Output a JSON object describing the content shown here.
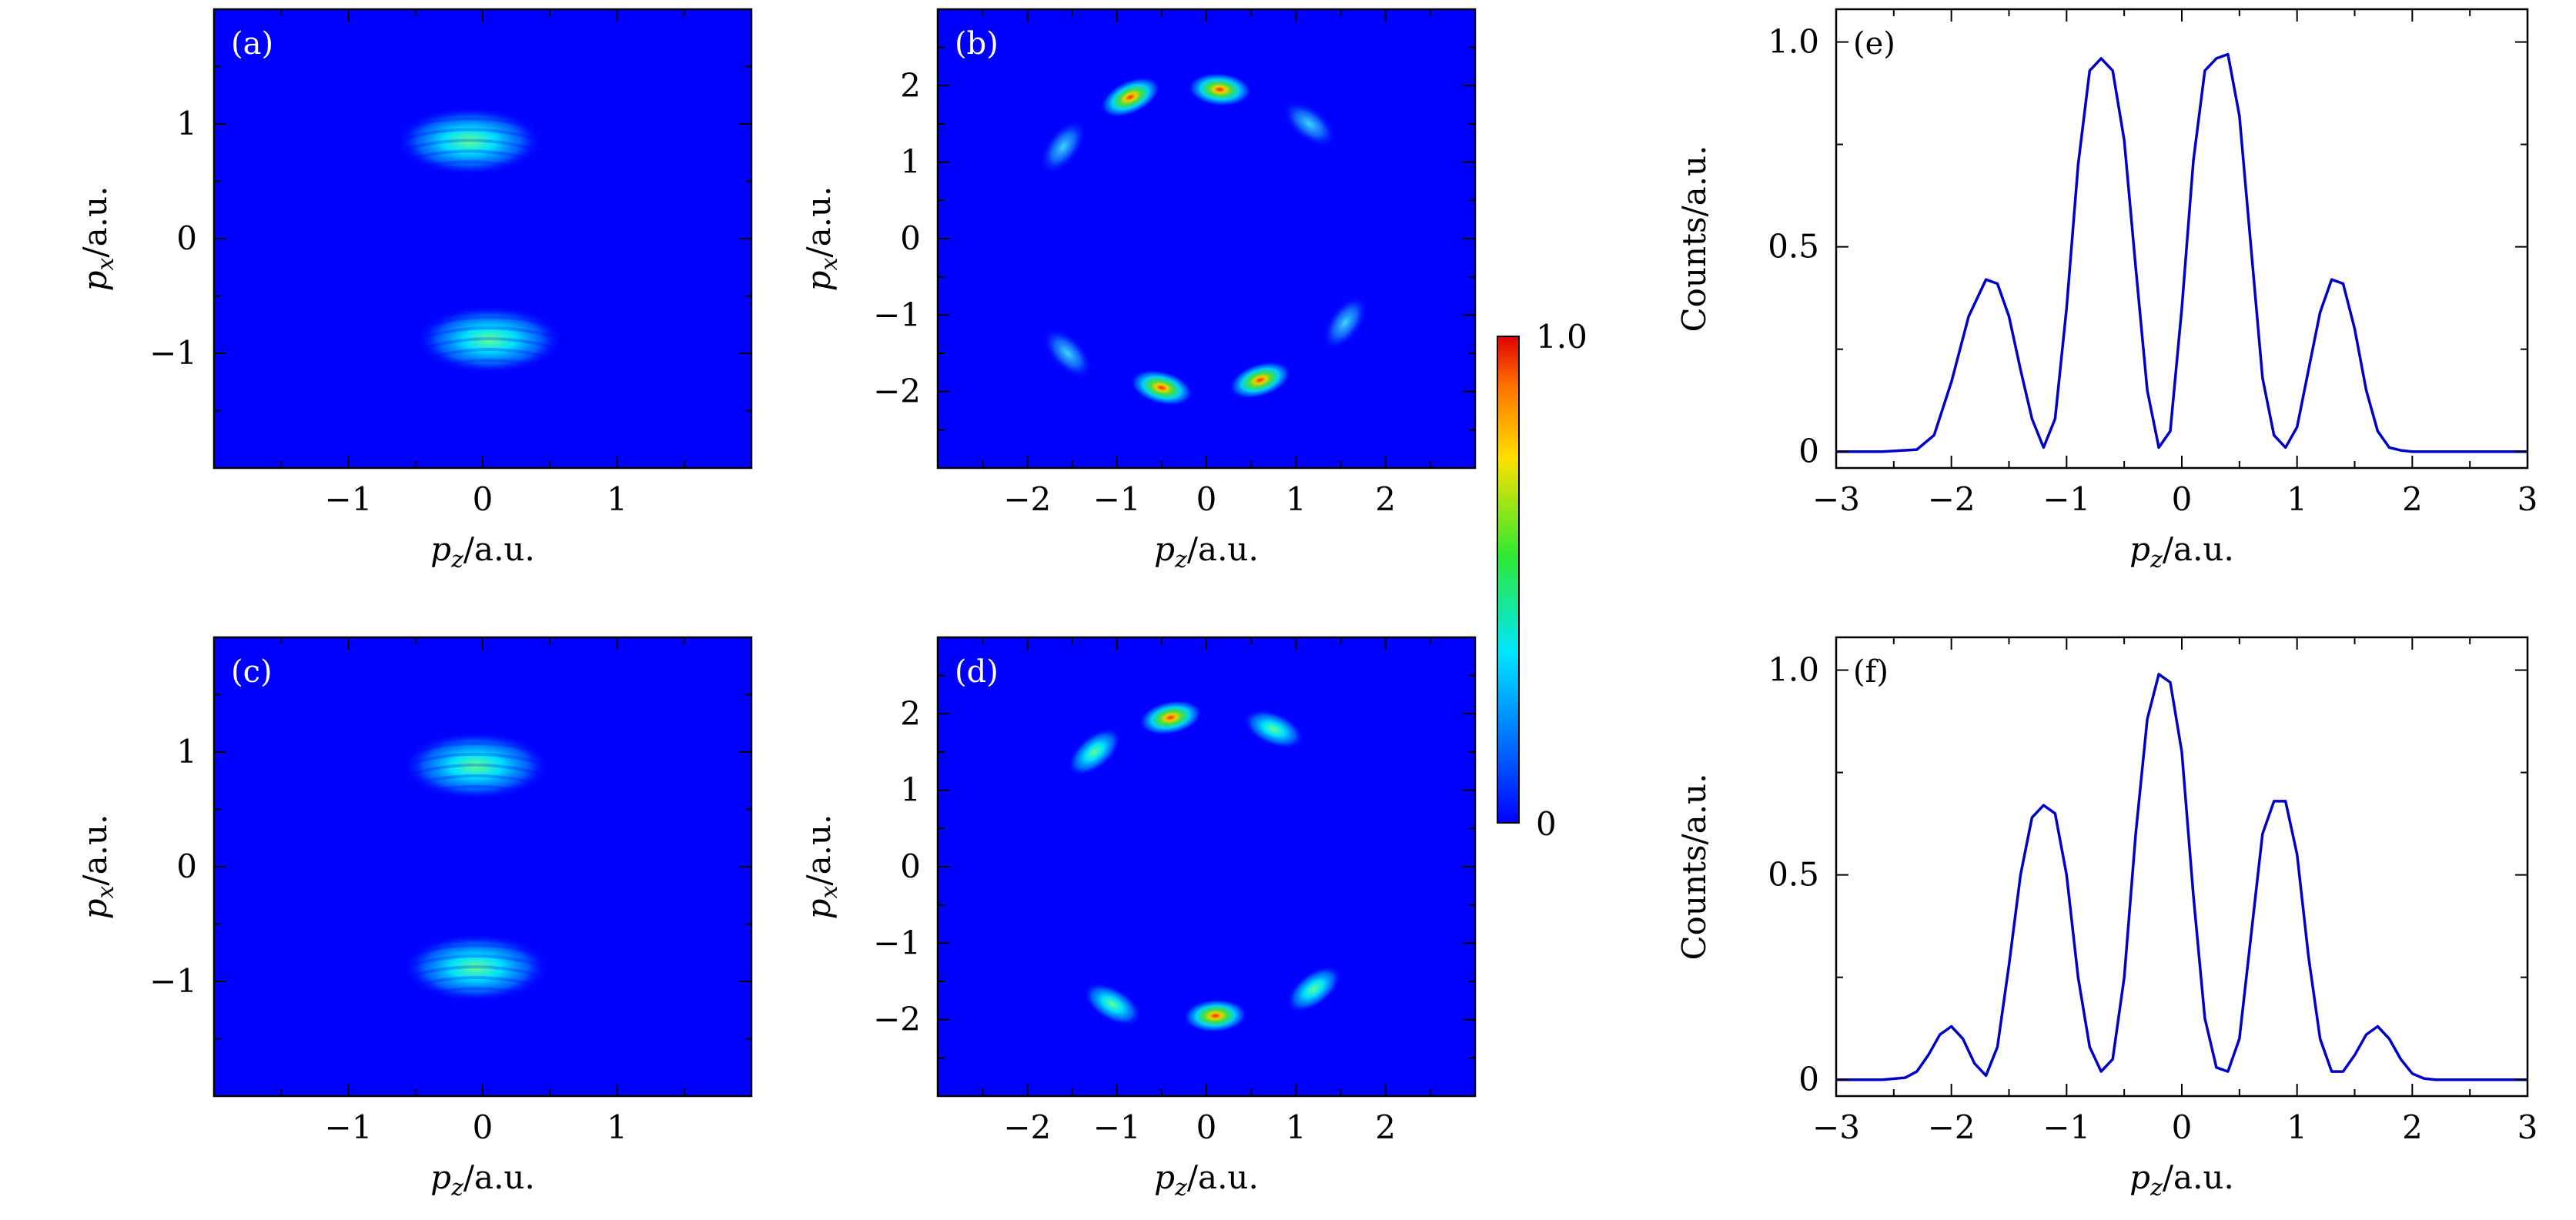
{
  "chart_data": [
    {
      "panel": "(a)",
      "type": "heatmap",
      "xlabel": "p_z/a.u.",
      "ylabel": "p_x/a.u.",
      "xlim": [
        -2,
        2
      ],
      "ylim": [
        -2,
        2
      ],
      "xticks": [
        -1,
        0,
        1
      ],
      "yticks": [
        -1,
        0,
        1
      ],
      "lobes": [
        {
          "x": -0.1,
          "y": 0.85,
          "peak": 0.7
        },
        {
          "x": 0.05,
          "y": -0.88,
          "peak": 0.7
        }
      ]
    },
    {
      "panel": "(b)",
      "type": "heatmap",
      "xlabel": "p_z/a.u.",
      "ylabel": "p_x/a.u.",
      "xlim": [
        -3,
        3
      ],
      "ylim": [
        -3,
        3
      ],
      "xticks": [
        -2,
        -1,
        0,
        1,
        2
      ],
      "yticks": [
        -2,
        -1,
        0,
        1,
        2
      ],
      "lobes": [
        {
          "x": -0.85,
          "y": 1.85,
          "peak": 1.0
        },
        {
          "x": 0.15,
          "y": 1.95,
          "peak": 1.0
        },
        {
          "x": -0.5,
          "y": -1.95,
          "peak": 1.0
        },
        {
          "x": 0.6,
          "y": -1.85,
          "peak": 1.0
        },
        {
          "x": 1.15,
          "y": 1.5,
          "peak": 0.45
        },
        {
          "x": -1.6,
          "y": 1.2,
          "peak": 0.4
        },
        {
          "x": -1.55,
          "y": -1.5,
          "peak": 0.45
        },
        {
          "x": 1.55,
          "y": -1.1,
          "peak": 0.4
        }
      ]
    },
    {
      "panel": "(c)",
      "type": "heatmap",
      "xlabel": "p_z/a.u.",
      "ylabel": "p_x/a.u.",
      "xlim": [
        -2,
        2
      ],
      "ylim": [
        -2,
        2
      ],
      "xticks": [
        -1,
        0,
        1
      ],
      "yticks": [
        -1,
        0,
        1
      ],
      "lobes": [
        {
          "x": -0.05,
          "y": 0.88,
          "peak": 0.7
        },
        {
          "x": -0.05,
          "y": -0.88,
          "peak": 0.7
        }
      ]
    },
    {
      "panel": "(d)",
      "type": "heatmap",
      "xlabel": "p_z/a.u.",
      "ylabel": "p_x/a.u.",
      "xlim": [
        -3,
        3
      ],
      "ylim": [
        -3,
        3
      ],
      "xticks": [
        -2,
        -1,
        0,
        1,
        2
      ],
      "yticks": [
        -2,
        -1,
        0,
        1,
        2
      ],
      "lobes": [
        {
          "x": -0.4,
          "y": 1.95,
          "peak": 1.0
        },
        {
          "x": 0.1,
          "y": -1.95,
          "peak": 1.0
        },
        {
          "x": 0.75,
          "y": 1.8,
          "peak": 0.85
        },
        {
          "x": -1.25,
          "y": 1.5,
          "peak": 0.85
        },
        {
          "x": -1.05,
          "y": -1.8,
          "peak": 0.85
        },
        {
          "x": 1.2,
          "y": -1.6,
          "peak": 0.85
        }
      ]
    },
    {
      "panel": "(e)",
      "type": "line",
      "xlabel": "p_z/a.u.",
      "ylabel": "Counts/a.u.",
      "xlim": [
        -3,
        3
      ],
      "ylim": [
        -0.04,
        1.08
      ],
      "xticks": [
        -3,
        -2,
        -1,
        0,
        1,
        2,
        3
      ],
      "yticks": [
        0,
        0.5,
        1.0
      ],
      "color": "#0000cc",
      "series": [
        {
          "x": [
            -3.0,
            -2.6,
            -2.3,
            -2.15,
            -2.0,
            -1.85,
            -1.7,
            -1.6,
            -1.5,
            -1.4,
            -1.3,
            -1.2,
            -1.1,
            -1.0,
            -0.9,
            -0.8,
            -0.7,
            -0.6,
            -0.5,
            -0.4,
            -0.3,
            -0.2,
            -0.1,
            0.0,
            0.1,
            0.2,
            0.3,
            0.4,
            0.5,
            0.6,
            0.7,
            0.8,
            0.9,
            1.0,
            1.1,
            1.2,
            1.3,
            1.4,
            1.5,
            1.6,
            1.7,
            1.8,
            1.9,
            2.0,
            2.2,
            2.5,
            3.0
          ],
          "y": [
            0.0,
            0.0,
            0.005,
            0.04,
            0.17,
            0.33,
            0.42,
            0.41,
            0.33,
            0.2,
            0.08,
            0.01,
            0.08,
            0.35,
            0.7,
            0.93,
            0.96,
            0.93,
            0.76,
            0.45,
            0.15,
            0.01,
            0.05,
            0.35,
            0.71,
            0.93,
            0.96,
            0.97,
            0.82,
            0.5,
            0.18,
            0.04,
            0.01,
            0.06,
            0.2,
            0.34,
            0.42,
            0.41,
            0.3,
            0.15,
            0.05,
            0.01,
            0.003,
            0.0,
            0.0,
            0.0,
            0.0
          ]
        }
      ]
    },
    {
      "panel": "(f)",
      "type": "line",
      "xlabel": "p_z/a.u.",
      "ylabel": "Counts/a.u.",
      "xlim": [
        -3,
        3
      ],
      "ylim": [
        -0.04,
        1.08
      ],
      "xticks": [
        -3,
        -2,
        -1,
        0,
        1,
        2,
        3
      ],
      "yticks": [
        0,
        0.5,
        1.0
      ],
      "color": "#0000cc",
      "series": [
        {
          "x": [
            -3.0,
            -2.6,
            -2.4,
            -2.3,
            -2.2,
            -2.1,
            -2.0,
            -1.9,
            -1.8,
            -1.7,
            -1.6,
            -1.5,
            -1.4,
            -1.3,
            -1.2,
            -1.1,
            -1.0,
            -0.9,
            -0.8,
            -0.7,
            -0.6,
            -0.5,
            -0.4,
            -0.3,
            -0.2,
            -0.1,
            0.0,
            0.1,
            0.2,
            0.3,
            0.4,
            0.5,
            0.6,
            0.7,
            0.8,
            0.9,
            1.0,
            1.1,
            1.2,
            1.3,
            1.4,
            1.5,
            1.6,
            1.7,
            1.8,
            1.9,
            2.0,
            2.1,
            2.2,
            2.4,
            2.7,
            3.0
          ],
          "y": [
            0.0,
            0.0,
            0.005,
            0.02,
            0.06,
            0.11,
            0.13,
            0.1,
            0.04,
            0.01,
            0.08,
            0.28,
            0.5,
            0.64,
            0.67,
            0.65,
            0.5,
            0.25,
            0.08,
            0.02,
            0.05,
            0.25,
            0.6,
            0.88,
            0.99,
            0.97,
            0.8,
            0.45,
            0.15,
            0.03,
            0.02,
            0.1,
            0.35,
            0.6,
            0.68,
            0.68,
            0.55,
            0.3,
            0.1,
            0.02,
            0.02,
            0.06,
            0.11,
            0.13,
            0.1,
            0.05,
            0.015,
            0.003,
            0.0,
            0.0,
            0.0,
            0.0
          ]
        }
      ]
    }
  ],
  "colorbar": {
    "min_label": "0",
    "max_label": "1.0",
    "colormap": "jet"
  },
  "colors": {
    "heatmap_background": "#0000ff",
    "line": "#0000cc"
  }
}
